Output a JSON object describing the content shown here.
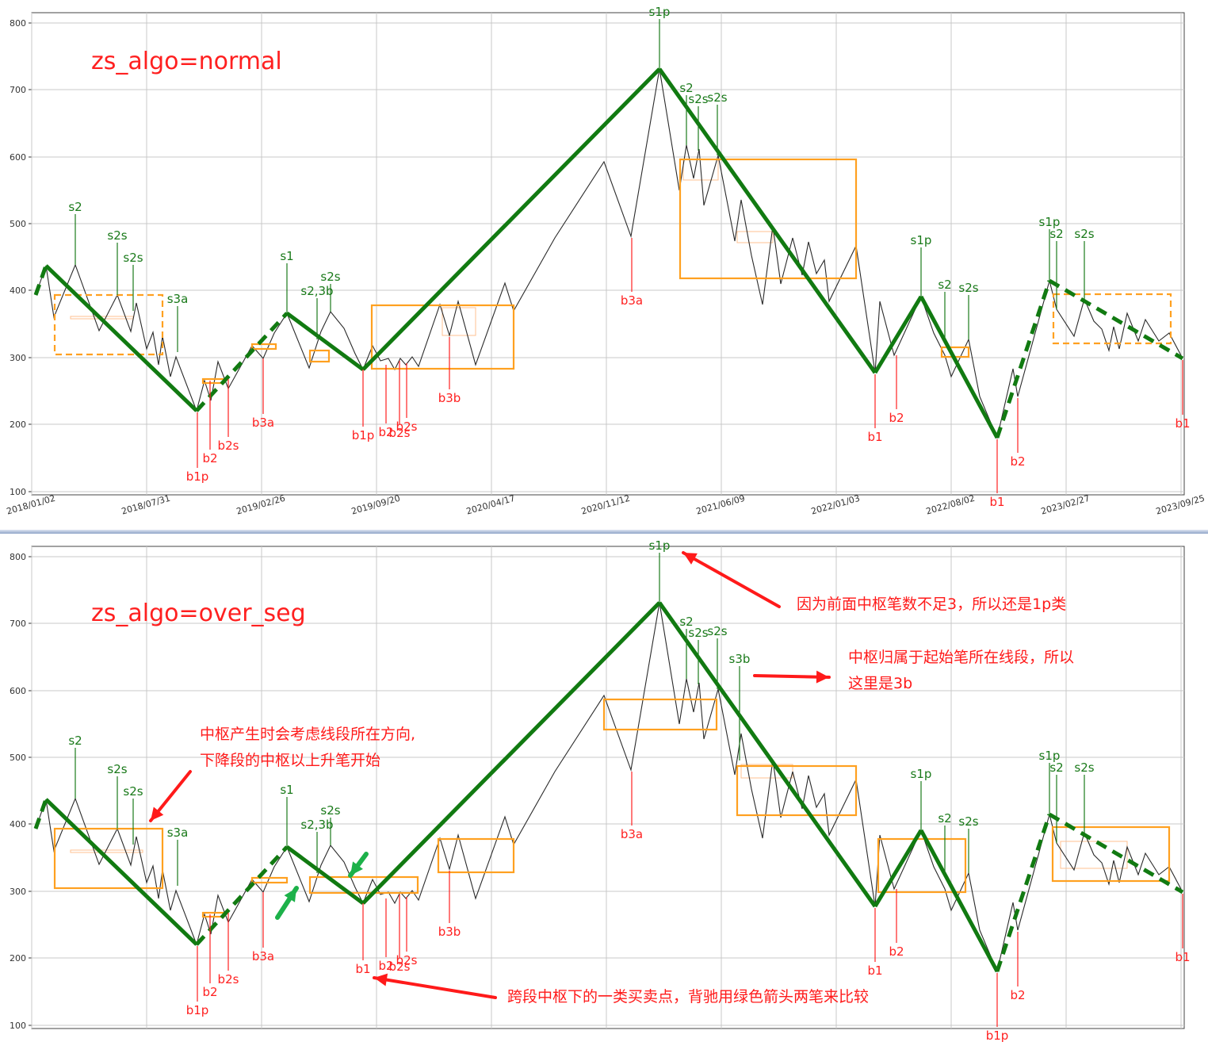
{
  "colors": {
    "price": "#2a2a2a",
    "segment": "#117a11",
    "zs_box": "#ffa020",
    "zs_inner": "#ffc090",
    "buy": "#ff2020",
    "sell": "#1a7a1a",
    "annotation": "#ff1a1a",
    "arrow_green": "#1db14a",
    "separator": "#1f3f7a"
  },
  "chart_data": [
    {
      "type": "line",
      "title": "zs_algo=normal",
      "y_ticks": [
        "100",
        "200",
        "300",
        "400",
        "500",
        "600",
        "700",
        "800"
      ],
      "x_ticks": [
        "2018/01/02",
        "2018/07/31",
        "2019/02/26",
        "2019/09/20",
        "2020/04/17",
        "2020/11/12",
        "2021/06/09",
        "2022/01/03",
        "2022/08/02",
        "2023/02/27",
        "2023/09/25"
      ],
      "ylim": [
        100,
        815
      ],
      "grid": true,
      "buy_labels": [
        "b1p",
        "b2",
        "b2s",
        "b3a",
        "b1p",
        "b2",
        "b2s",
        "b2s",
        "b3b",
        "b3a",
        "b1",
        "b2",
        "b1",
        "b2",
        "b1"
      ],
      "sell_labels": [
        "s2",
        "s2s",
        "s2s",
        "s3a",
        "s1",
        "s2,3b",
        "s2s",
        "s1p",
        "s2",
        "s2s",
        "s2s",
        "s1p",
        "s2",
        "s2s",
        "s1p",
        "s2",
        "s2s"
      ]
    },
    {
      "type": "line",
      "title": "zs_algo=over_seg",
      "y_ticks": [
        "100",
        "200",
        "300",
        "400",
        "500",
        "600",
        "700",
        "800"
      ],
      "ylim": [
        100,
        815
      ],
      "grid": true,
      "buy_labels": [
        "b1p",
        "b2",
        "b2s",
        "b3a",
        "b1",
        "b2",
        "b2s",
        "b2s",
        "b3b",
        "b3a",
        "b1",
        "b2",
        "b1p",
        "b2",
        "b1"
      ],
      "sell_labels": [
        "s2",
        "s2s",
        "s2s",
        "s3a",
        "s1",
        "s2,3b",
        "s2s",
        "s1p",
        "s2",
        "s2s",
        "s2s",
        "s3b",
        "s1p",
        "s2",
        "s2s",
        "s1p",
        "s2",
        "s2s"
      ]
    }
  ],
  "notes": {
    "n1": "因为前面中枢笔数不足3，所以还是1p类",
    "n2a": "中枢归属于起始笔所在线段，所以",
    "n2b": "这里是3b",
    "n3a": "中枢产生时会考虑线段所在方向,",
    "n3b": "下降段的中枢以上升笔开始",
    "n4": "跨段中枢下的一类买卖点，背驰用绿色箭头两笔来比较"
  }
}
